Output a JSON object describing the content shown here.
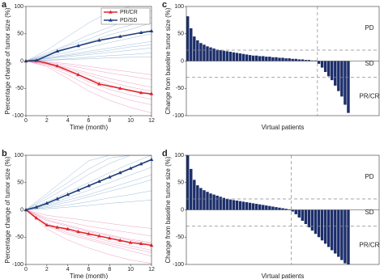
{
  "chart_data": [
    {
      "type": "line",
      "panel_label": "a",
      "xlabel": "Time (month)",
      "ylabel": "Percentage change of tumor size (%)",
      "xlim": [
        0,
        12
      ],
      "xticks": [
        0,
        2,
        4,
        6,
        8,
        10,
        12
      ],
      "ylim": [
        -100,
        100
      ],
      "yticks": [
        -100,
        -50,
        0,
        50,
        100
      ],
      "legend": "upper right",
      "x": [
        0,
        1,
        3,
        5,
        7,
        9,
        11,
        12
      ],
      "series": [
        {
          "name": "PR/CR",
          "color": "#e0262e",
          "values": [
            0,
            1,
            -9,
            -25,
            -42,
            -50,
            -58,
            -60
          ]
        },
        {
          "name": "PD/SD",
          "color": "#1f3d7a",
          "values": [
            0,
            1,
            18,
            28,
            38,
            45,
            52,
            55
          ]
        }
      ],
      "trajectory_x": [
        0,
        2,
        4,
        6,
        8,
        10,
        12
      ],
      "trajectories": [
        {
          "color": "#5b8fc0",
          "lines": [
            [
              0,
              20,
              45,
              70,
              90,
              100,
              100
            ],
            [
              0,
              15,
              30,
              48,
              62,
              78,
              92
            ],
            [
              0,
              10,
              22,
              35,
              48,
              58,
              70
            ],
            [
              0,
              8,
              16,
              25,
              34,
              42,
              50
            ],
            [
              0,
              5,
              12,
              18,
              24,
              30,
              36
            ],
            [
              0,
              4,
              8,
              12,
              16,
              20,
              24
            ],
            [
              0,
              2,
              4,
              7,
              10,
              12,
              15
            ],
            [
              0,
              1,
              3,
              4,
              6,
              7,
              8
            ],
            [
              0,
              12,
              28,
              40,
              55,
              66,
              80
            ],
            [
              0,
              6,
              10,
              15,
              20,
              26,
              30
            ]
          ]
        },
        {
          "color": "#e0609a",
          "lines": [
            [
              0,
              -8,
              -25,
              -45,
              -60,
              -72,
              -80
            ],
            [
              0,
              -5,
              -18,
              -32,
              -44,
              -54,
              -62
            ],
            [
              0,
              -3,
              -12,
              -22,
              -32,
              -40,
              -48
            ],
            [
              0,
              -2,
              -8,
              -15,
              -22,
              -28,
              -34
            ],
            [
              0,
              -10,
              -32,
              -55,
              -72,
              -85,
              -95
            ],
            [
              0,
              -1,
              -5,
              -10,
              -15,
              -20,
              -25
            ],
            [
              0,
              -6,
              -20,
              -38,
              -52,
              -62,
              -70
            ],
            [
              0,
              -4,
              -14,
              -26,
              -38,
              -48,
              -55
            ]
          ]
        }
      ]
    },
    {
      "type": "bar",
      "panel_label": "c",
      "xlabel": "Virtual patients",
      "ylabel": "Change from baseline tumor size (%)",
      "ylim": [
        -100,
        100
      ],
      "yticks": [
        -100,
        -50,
        0,
        50,
        100
      ],
      "color": "#1c2e6b",
      "thresholds": [
        20,
        -30
      ],
      "region_labels": [
        "PD",
        "SD",
        "PR/CR"
      ],
      "values": [
        82,
        60,
        45,
        38,
        33,
        30,
        27,
        25,
        23,
        21,
        20,
        19,
        18,
        17,
        16,
        15,
        14,
        13,
        12,
        11,
        10,
        10,
        9,
        9,
        8,
        8,
        7,
        7,
        6,
        6,
        5,
        5,
        4,
        4,
        3,
        3,
        2,
        2,
        1,
        1,
        -5,
        -12,
        -20,
        -28,
        -35,
        -45,
        -55,
        -65,
        -80,
        -95
      ]
    },
    {
      "type": "line",
      "panel_label": "b",
      "xlabel": "Time (month)",
      "ylabel": "Percentage change of tumor size (%)",
      "xlim": [
        0,
        12
      ],
      "xticks": [
        0,
        2,
        4,
        6,
        8,
        10,
        12
      ],
      "ylim": [
        -100,
        100
      ],
      "yticks": [
        -100,
        -50,
        0,
        50,
        100
      ],
      "x": [
        0,
        1,
        2,
        3,
        4,
        5,
        6,
        7,
        8,
        9,
        10,
        11,
        12
      ],
      "series": [
        {
          "name": "PR/CR",
          "color": "#e0262e",
          "values": [
            0,
            -15,
            -28,
            -32,
            -35,
            -40,
            -44,
            -48,
            -52,
            -56,
            -60,
            -62,
            -65
          ]
        },
        {
          "name": "PD/SD",
          "color": "#1f3d7a",
          "values": [
            0,
            5,
            12,
            20,
            28,
            36,
            44,
            52,
            60,
            68,
            76,
            84,
            92
          ]
        }
      ],
      "trajectory_x": [
        0,
        2,
        4,
        6,
        8,
        10,
        12
      ],
      "trajectories": [
        {
          "color": "#5b8fc0",
          "lines": [
            [
              0,
              30,
              60,
              90,
              100,
              100,
              100
            ],
            [
              0,
              20,
              42,
              65,
              85,
              100,
              100
            ],
            [
              0,
              15,
              32,
              50,
              68,
              85,
              100
            ],
            [
              0,
              10,
              22,
              36,
              50,
              64,
              78
            ],
            [
              0,
              6,
              14,
              24,
              34,
              44,
              55
            ],
            [
              0,
              4,
              9,
              15,
              22,
              28,
              35
            ],
            [
              0,
              2,
              5,
              8,
              12,
              15,
              18
            ],
            [
              0,
              25,
              50,
              75,
              95,
              100,
              100
            ],
            [
              0,
              8,
              18,
              28,
              40,
              52,
              64
            ]
          ]
        },
        {
          "color": "#e0609a",
          "lines": [
            [
              0,
              -30,
              -45,
              -55,
              -65,
              -75,
              -85
            ],
            [
              0,
              -25,
              -38,
              -48,
              -58,
              -66,
              -74
            ],
            [
              0,
              -20,
              -30,
              -40,
              -48,
              -56,
              -62
            ],
            [
              0,
              -15,
              -22,
              -30,
              -36,
              -42,
              -48
            ],
            [
              0,
              -35,
              -55,
              -70,
              -82,
              -92,
              -98
            ],
            [
              0,
              -10,
              -15,
              -20,
              -25,
              -30,
              -34
            ],
            [
              0,
              -28,
              -42,
              -52,
              -62,
              -70,
              -78
            ],
            [
              0,
              -18,
              -28,
              -38,
              -46,
              -54,
              -60
            ]
          ]
        }
      ]
    },
    {
      "type": "bar",
      "panel_label": "d",
      "xlabel": "Virtual patients",
      "ylabel": "Change from baseline tumor size (%)",
      "ylim": [
        -100,
        100
      ],
      "yticks": [
        -100,
        -50,
        0,
        50,
        100
      ],
      "color": "#1c2e6b",
      "thresholds": [
        20,
        -30
      ],
      "region_labels": [
        "PD",
        "SD",
        "PR/CR"
      ],
      "values": [
        100,
        75,
        55,
        45,
        40,
        36,
        33,
        30,
        28,
        26,
        24,
        22,
        20,
        19,
        18,
        17,
        16,
        15,
        14,
        13,
        12,
        11,
        10,
        9,
        8,
        7,
        6,
        5,
        4,
        3,
        2,
        1,
        -3,
        -8,
        -14,
        -20,
        -26,
        -32,
        -38,
        -44,
        -50,
        -56,
        -62,
        -68,
        -74,
        -80,
        -86,
        -92,
        -98,
        -100
      ]
    }
  ]
}
